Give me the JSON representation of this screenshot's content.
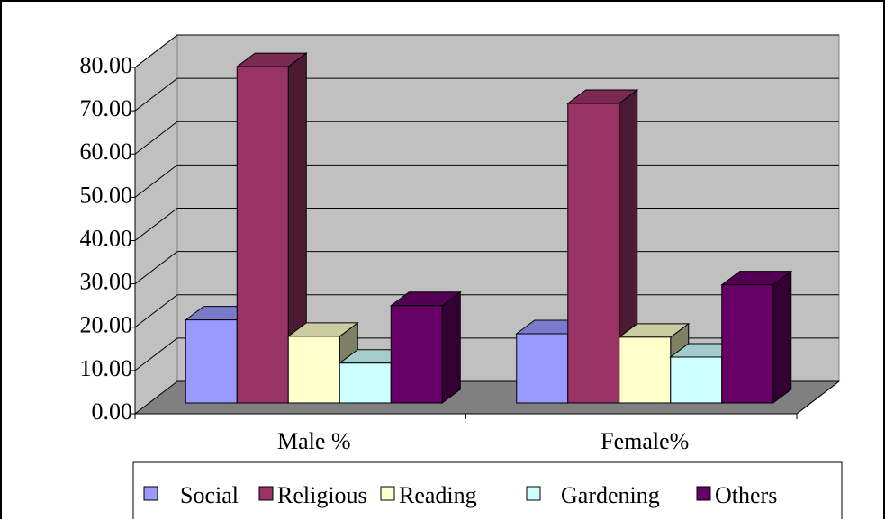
{
  "chart_data": {
    "type": "bar3d",
    "categories": [
      "Male %",
      "Female%"
    ],
    "series": [
      {
        "name": "Social",
        "color": "#9999ff",
        "values": [
          19.2,
          16.0
        ]
      },
      {
        "name": "Religious",
        "color": "#993366",
        "values": [
          77.7,
          69.2
        ]
      },
      {
        "name": "Reading",
        "color": "#ffffcc",
        "values": [
          15.4,
          15.2
        ]
      },
      {
        "name": "Gardening",
        "color": "#ccffff",
        "values": [
          9.2,
          10.6
        ]
      },
      {
        "name": "Others",
        "color": "#660066",
        "values": [
          22.5,
          27.3
        ]
      }
    ],
    "ylim": [
      0,
      80
    ],
    "yticks": [
      {
        "value": 0,
        "label": "0.00"
      },
      {
        "value": 10,
        "label": "10.00"
      },
      {
        "value": 20,
        "label": "20.00"
      },
      {
        "value": 30,
        "label": "30.00"
      },
      {
        "value": 40,
        "label": "40.00"
      },
      {
        "value": 50,
        "label": "50.00"
      },
      {
        "value": 60,
        "label": "60.00"
      },
      {
        "value": 70,
        "label": "70.00"
      },
      {
        "value": 80,
        "label": "80.00"
      }
    ],
    "grid": true,
    "legend": "bottom"
  }
}
